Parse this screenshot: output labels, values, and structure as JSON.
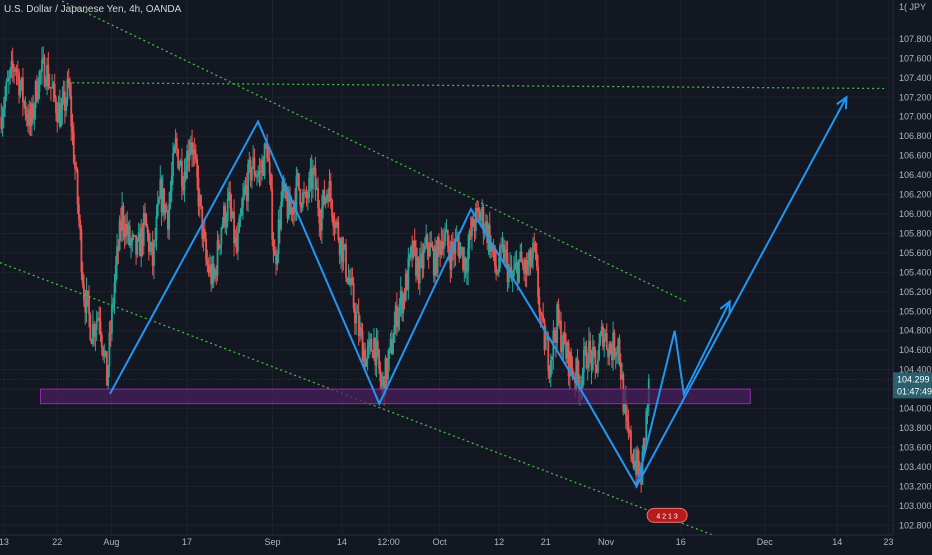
{
  "header": {
    "title": "U.S. Dollar / Japanese Yen, 4h, OANDA",
    "corner_label": "1( JPY"
  },
  "chart_data": {
    "type": "candlestick",
    "title": "U.S. Dollar / Japanese Yen, 4h, OANDA",
    "ylim": [
      102.7,
      108.2
    ],
    "y_ticks": [
      102.8,
      103.0,
      103.2,
      103.4,
      103.6,
      103.8,
      104.0,
      104.2,
      104.4,
      104.6,
      104.8,
      105.0,
      105.2,
      105.4,
      105.6,
      105.8,
      106.0,
      106.2,
      106.4,
      106.6,
      106.8,
      107.0,
      107.2,
      107.4,
      107.6,
      107.8
    ],
    "x_ticks": [
      {
        "label": "13",
        "t": 0.5
      },
      {
        "label": "22",
        "t": 7.5
      },
      {
        "label": "Aug",
        "t": 14.6
      },
      {
        "label": "17",
        "t": 24.5
      },
      {
        "label": "Sep",
        "t": 35.7
      },
      {
        "label": "14",
        "t": 44.8
      },
      {
        "label": "12:00",
        "t": 50.9
      },
      {
        "label": "Oct",
        "t": 57.6
      },
      {
        "label": "12",
        "t": 65.4
      },
      {
        "label": "21",
        "t": 71.5
      },
      {
        "label": "Nov",
        "t": 79.4
      },
      {
        "label": "16",
        "t": 89.2
      },
      {
        "label": "Dec",
        "t": 100.2
      },
      {
        "label": "14",
        "t": 109.7
      },
      {
        "label": "23",
        "t": 116.4
      }
    ],
    "t_range": [
      0,
      117
    ],
    "price_series": [
      [
        0,
        107.0
      ],
      [
        1,
        107.3
      ],
      [
        2,
        107.55
      ],
      [
        3,
        107.2
      ],
      [
        4,
        106.9
      ],
      [
        5,
        107.4
      ],
      [
        6,
        107.5
      ],
      [
        7,
        107.2
      ],
      [
        8,
        107.0
      ],
      [
        9,
        107.3
      ],
      [
        10,
        106.3
      ],
      [
        11,
        105.2
      ],
      [
        12,
        104.8
      ],
      [
        13,
        105.0
      ],
      [
        14,
        104.3
      ],
      [
        15,
        105.3
      ],
      [
        16,
        106.0
      ],
      [
        17,
        105.7
      ],
      [
        18,
        105.6
      ],
      [
        19,
        105.9
      ],
      [
        20,
        105.5
      ],
      [
        21,
        106.2
      ],
      [
        22,
        106.0
      ],
      [
        23,
        106.7
      ],
      [
        24,
        106.4
      ],
      [
        25,
        106.8
      ],
      [
        26,
        106.2
      ],
      [
        27,
        105.5
      ],
      [
        28,
        105.3
      ],
      [
        29,
        105.9
      ],
      [
        30,
        106.1
      ],
      [
        31,
        105.6
      ],
      [
        32,
        106.2
      ],
      [
        33,
        106.5
      ],
      [
        34,
        106.4
      ],
      [
        35,
        106.7
      ],
      [
        36,
        105.5
      ],
      [
        37,
        106.2
      ],
      [
        38,
        106.0
      ],
      [
        39,
        106.3
      ],
      [
        40,
        106.1
      ],
      [
        41,
        106.4
      ],
      [
        42,
        106.0
      ],
      [
        43,
        106.3
      ],
      [
        44,
        105.9
      ],
      [
        45,
        105.6
      ],
      [
        46,
        105.2
      ],
      [
        47,
        104.8
      ],
      [
        48,
        104.5
      ],
      [
        49,
        104.7
      ],
      [
        50,
        104.2
      ],
      [
        51,
        104.5
      ],
      [
        52,
        105.0
      ],
      [
        53,
        105.2
      ],
      [
        54,
        105.6
      ],
      [
        55,
        105.4
      ],
      [
        56,
        105.7
      ],
      [
        57,
        105.5
      ],
      [
        58,
        105.8
      ],
      [
        59,
        105.6
      ],
      [
        60,
        105.7
      ],
      [
        61,
        105.5
      ],
      [
        62,
        105.9
      ],
      [
        63,
        106.0
      ],
      [
        64,
        105.8
      ],
      [
        65,
        105.4
      ],
      [
        66,
        105.6
      ],
      [
        67,
        105.3
      ],
      [
        68,
        105.5
      ],
      [
        69,
        105.4
      ],
      [
        70,
        105.6
      ],
      [
        71,
        104.8
      ],
      [
        72,
        104.5
      ],
      [
        73,
        104.9
      ],
      [
        74,
        104.6
      ],
      [
        75,
        104.4
      ],
      [
        76,
        104.3
      ],
      [
        77,
        104.6
      ],
      [
        78,
        104.4
      ],
      [
        79,
        104.8
      ],
      [
        80,
        104.6
      ],
      [
        81,
        104.7
      ],
      [
        82,
        103.8
      ],
      [
        83,
        103.5
      ],
      [
        84,
        103.3
      ],
      [
        85,
        104.2
      ]
    ],
    "support_zone": {
      "y_low": 104.05,
      "y_high": 104.2,
      "t_start": 5.3,
      "t_end": 98.3
    },
    "trend_lines": [
      {
        "points": [
          [
            5.2,
            108.3
          ],
          [
            89.9,
            105.1
          ]
        ]
      },
      {
        "points": [
          [
            0,
            105.5
          ],
          [
            93.4,
            102.7
          ]
        ]
      },
      {
        "points": [
          [
            8.8,
            107.35
          ],
          [
            116.2,
            107.29
          ]
        ]
      }
    ],
    "zigzag": [
      [
        14.4,
        104.15
      ],
      [
        33.8,
        106.95
      ],
      [
        49.7,
        104.05
      ],
      [
        61.7,
        106.05
      ],
      [
        76.8,
        104.1
      ],
      [
        83.4,
        103.2
      ],
      [
        88.4,
        104.8
      ],
      [
        89.6,
        104.15
      ],
      [
        95.6,
        105.1
      ]
    ],
    "projection": [
      [
        83.4,
        103.2
      ],
      [
        110.9,
        107.2
      ]
    ],
    "last_price": {
      "value": "104.299",
      "countdown": "01:47:49",
      "y": 104.3
    },
    "badge": {
      "text": "4 2 1 3",
      "t": 87.4,
      "y": 102.83
    },
    "colors": {
      "bull": "#26a69a",
      "bear": "#ef5350",
      "zigzag": "#2196f3",
      "trend": "#3fbf3f",
      "zone_fill": "#4a1f5e",
      "zone_stroke": "#9c27b0",
      "price_tag": "#2a5f6b"
    }
  }
}
